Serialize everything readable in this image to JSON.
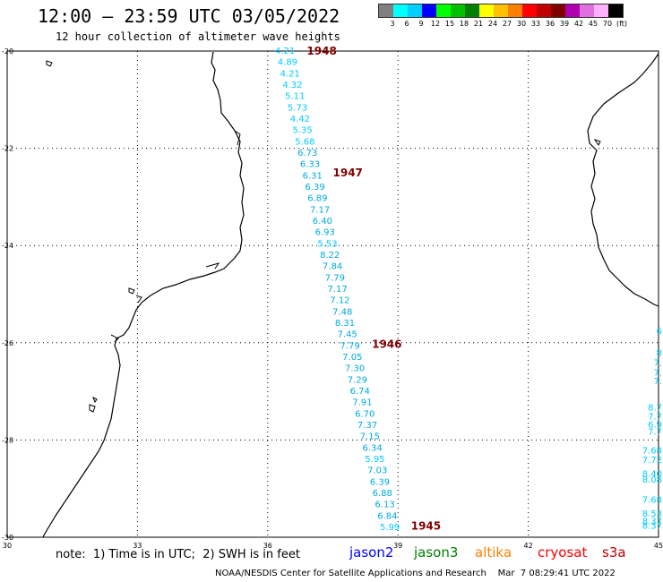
{
  "header": {
    "title": "12:00 — 23:59 UTC 03/05/2022",
    "subtitle": "12 hour collection of altimeter wave heights"
  },
  "legend": {
    "colors": [
      "#808080",
      "#00ffff",
      "#00d0ff",
      "#0000ff",
      "#00ff00",
      "#00c000",
      "#008000",
      "#ffff00",
      "#ffc000",
      "#ff8000",
      "#ff0000",
      "#c00000",
      "#800000",
      "#b000b0",
      "#e070e0",
      "#ffb0ff",
      "#000000"
    ],
    "labels": [
      "3",
      "6",
      "9",
      "12",
      "15",
      "18",
      "21",
      "24",
      "27",
      "30",
      "33",
      "36",
      "39",
      "42",
      "45",
      "70",
      "(ft)"
    ]
  },
  "axes": {
    "x_ticks": [
      "30",
      "33",
      "36",
      "39",
      "42",
      "45"
    ],
    "y_ticks": [
      "-20",
      "-22",
      "-24",
      "-26",
      "-28",
      "-30"
    ]
  },
  "track": {
    "values": [
      "4.21",
      "4.89",
      "4.21",
      "4.32",
      "5.11",
      "5.73",
      "4.42",
      "5.35",
      "5.68",
      "6.73",
      "6.33",
      "6.31",
      "6.39",
      "6.89",
      "7.17",
      "6.40",
      "6.93",
      "5.53",
      "8.22",
      "7.84",
      "7.79",
      "7.17",
      "7.12",
      "7.48",
      "8.31",
      "7.45",
      "7.79",
      "7.05",
      "7.30",
      "7.29",
      "6.74",
      "7.91",
      "6.70",
      "7.37",
      "7.15",
      "6.34",
      "5.95",
      "7.03",
      "6.39",
      "6.88",
      "6.13",
      "6.84",
      "5.99"
    ],
    "colors": {
      "light": "#00ccff",
      "mid": "#00aadd"
    }
  },
  "time_labels": [
    {
      "text": "1948",
      "lon": 36.9,
      "lat": -20.0
    },
    {
      "text": "1947",
      "lon": 37.5,
      "lat": -22.5
    },
    {
      "text": "1946",
      "lon": 38.4,
      "lat": -26.03
    },
    {
      "text": "1945",
      "lon": 39.3,
      "lat": -29.77
    }
  ],
  "edge_values": [
    {
      "text": "6",
      "lat": -25.75
    },
    {
      "text": "8",
      "lat": -26.2
    },
    {
      "text": "7.",
      "lat": -26.4
    },
    {
      "text": "7.",
      "lat": -26.6
    },
    {
      "text": "7.",
      "lat": -26.78
    },
    {
      "text": "8.7",
      "lat": -27.32
    },
    {
      "text": "7.7",
      "lat": -27.5
    },
    {
      "text": "6.9",
      "lat": -27.67
    },
    {
      "text": "7.7",
      "lat": -27.82
    },
    {
      "text": "7.68",
      "lat": -28.2
    },
    {
      "text": "7.72",
      "lat": -28.4
    },
    {
      "text": "8.40",
      "lat": -28.68
    },
    {
      "text": "8.08",
      "lat": -28.8
    },
    {
      "text": "7.68",
      "lat": -29.22
    },
    {
      "text": "8.53",
      "lat": -29.5
    },
    {
      "text": "8.37",
      "lat": -29.66
    },
    {
      "text": "8.37",
      "lat": -29.75
    }
  ],
  "footer": {
    "note": "note:  1) Time is in UTC;  2) SWH is in feet",
    "satellites": [
      {
        "name": "jason2",
        "color": "#0000ff"
      },
      {
        "name": "jason3",
        "color": "#008000"
      },
      {
        "name": "altika",
        "color": "#ff8000"
      },
      {
        "name": "cryosat",
        "color": "#ff0000"
      },
      {
        "name": "s3a",
        "color": "#c00000"
      }
    ],
    "credit": "NOAA/NESDIS Center for Satellite Applications and Research    Mar  7 08:29:41 UTC 2022"
  }
}
